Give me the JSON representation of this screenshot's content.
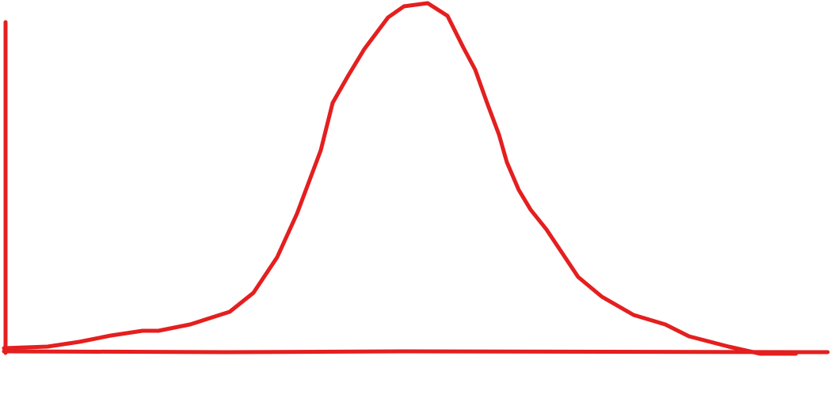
{
  "diagram": {
    "type": "hand-drawn bell curve sketch",
    "stroke_color": "#e41f1f",
    "background_color": "#ffffff"
  }
}
